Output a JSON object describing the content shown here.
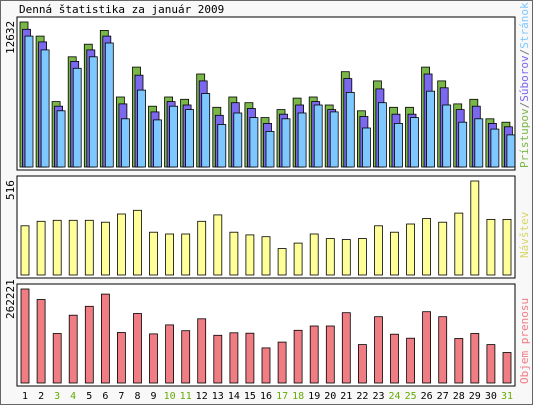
{
  "title": "Denná štatistika za január 2009",
  "chart_data": {
    "type": "bar",
    "days": [
      "1",
      "2",
      "3",
      "4",
      "5",
      "6",
      "7",
      "8",
      "9",
      "10",
      "11",
      "12",
      "13",
      "14",
      "15",
      "16",
      "17",
      "18",
      "19",
      "20",
      "21",
      "22",
      "23",
      "24",
      "25",
      "26",
      "27",
      "28",
      "29",
      "30",
      "31"
    ],
    "weekend_days": [
      "3",
      "4",
      "10",
      "11",
      "17",
      "18",
      "24",
      "25",
      "31"
    ],
    "colors": {
      "pristupov": "#7ab648",
      "suborov": "#7b68ee",
      "stranok": "#7ec8ff",
      "navstev": "#ffff99",
      "objem": "#f07d84",
      "weekday_label": "#000000",
      "weekend_label": "#66aa00"
    },
    "panels": [
      {
        "legend": [
          "Prístupov",
          "Súborov",
          "Stránok"
        ],
        "max_label": "12632",
        "ymax": 12632,
        "series": [
          {
            "name": "Prístupov",
            "values": [
              12632,
              11400,
              5700,
              9600,
              10700,
              11900,
              6100,
              8700,
              5300,
              6100,
              5900,
              8100,
              5200,
              6100,
              5600,
              4300,
              5000,
              6000,
              6100,
              5400,
              8300,
              4900,
              7500,
              5200,
              5200,
              8700,
              7500,
              5500,
              5900,
              4200,
              3900
            ]
          },
          {
            "name": "Súborov",
            "values": [
              12000,
              10900,
              5300,
              9200,
              10200,
              11400,
              5500,
              8000,
              4800,
              5700,
              5400,
              7500,
              4500,
              5600,
              5100,
              3800,
              4600,
              5400,
              5700,
              5000,
              7700,
              4400,
              6800,
              4600,
              4600,
              8100,
              6900,
              5000,
              5300,
              3800,
              3500
            ]
          },
          {
            "name": "Stránok",
            "values": [
              11400,
              10200,
              4900,
              8600,
              9600,
              10800,
              4200,
              6700,
              4100,
              5300,
              5000,
              6400,
              3700,
              4700,
              4300,
              3100,
              4200,
              4700,
              5400,
              4800,
              6500,
              3400,
              5600,
              3800,
              4300,
              6600,
              5400,
              3900,
              4200,
              3300,
              2800
            ]
          }
        ]
      },
      {
        "legend": [
          "Návštev"
        ],
        "max_label": "516",
        "ymax": 516,
        "series": [
          {
            "name": "Návštev",
            "values": [
              270,
              295,
              300,
              300,
              300,
              290,
              335,
              355,
              235,
              225,
              225,
              295,
              330,
              235,
              220,
              210,
              145,
              175,
              225,
              200,
              195,
              200,
              270,
              235,
              280,
              310,
              290,
              340,
              516,
              305,
              305
            ]
          }
        ]
      },
      {
        "legend": [
          "Objem prenosu"
        ],
        "max_label": "262221",
        "ymax": 262221,
        "series": [
          {
            "name": "Objem prenosu",
            "values": [
              262221,
              233000,
              138000,
              189000,
              214000,
              248000,
              141000,
              194000,
              137000,
              162000,
              146000,
              179000,
              133000,
              140000,
              139000,
              98000,
              114000,
              147000,
              159000,
              159000,
              196000,
              107000,
              185000,
              136000,
              125000,
              199000,
              185000,
              124000,
              138000,
              107000,
              85000
            ]
          }
        ]
      }
    ]
  }
}
